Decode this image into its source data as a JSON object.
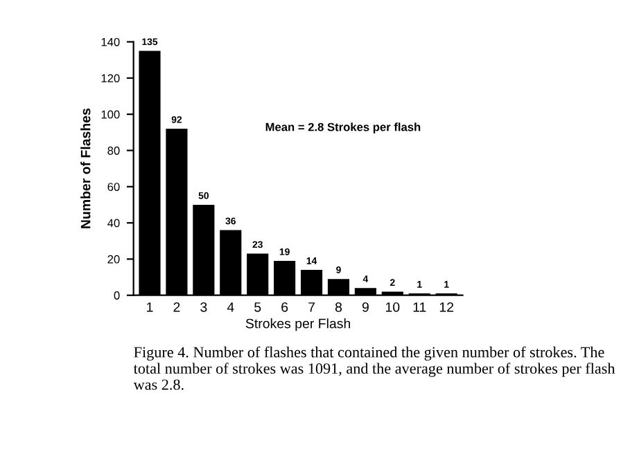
{
  "chart_data": {
    "type": "bar",
    "xlabel": "Strokes per Flash",
    "ylabel": "Number of Flashes",
    "categories": [
      "1",
      "2",
      "3",
      "4",
      "5",
      "6",
      "7",
      "8",
      "9",
      "10",
      "11",
      "12"
    ],
    "values": [
      135,
      92,
      50,
      36,
      23,
      19,
      14,
      9,
      4,
      2,
      1,
      1
    ],
    "color": "#000000",
    "ylim": [
      0,
      140
    ],
    "yticks": [
      0,
      20,
      40,
      60,
      80,
      100,
      120,
      140
    ],
    "data_labels": true,
    "grid": false,
    "legend": false,
    "annotations": [
      "Mean = 2.8 Strokes per flash",
      "Figure 4. Number of flashes that contained the given number of strokes. The total number of strokes was 1091, and the average number of strokes per flash was 2.8."
    ]
  }
}
